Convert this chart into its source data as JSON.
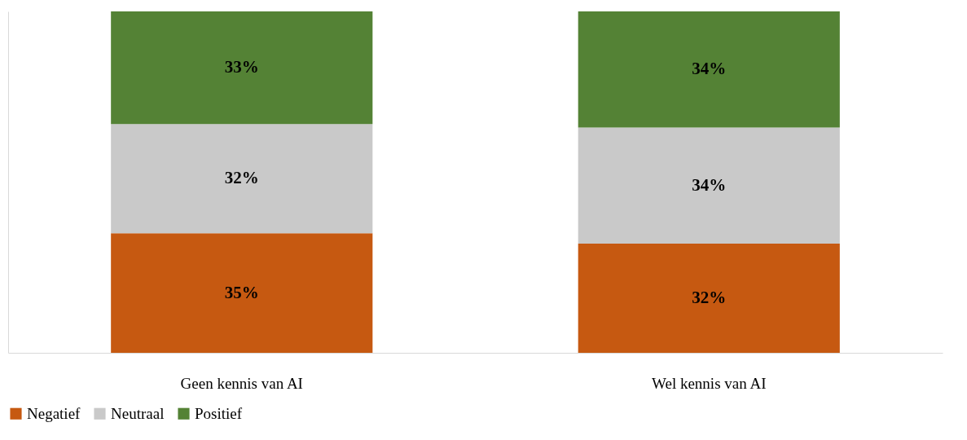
{
  "chart_data": {
    "type": "bar",
    "stacked": true,
    "categories": [
      "Geen kennis van AI",
      "Wel kennis van AI"
    ],
    "series": [
      {
        "name": "Negatief",
        "color": "#c65911",
        "values": [
          35,
          32
        ],
        "value_labels": [
          "35%",
          "32%"
        ]
      },
      {
        "name": "Neutraal",
        "color": "#c9c9c9",
        "values": [
          32,
          34
        ],
        "value_labels": [
          "32%",
          "34%"
        ]
      },
      {
        "name": "Positief",
        "color": "#548235",
        "values": [
          33,
          34
        ],
        "value_labels": [
          "33%",
          "34%"
        ]
      }
    ],
    "ylim": [
      0,
      100
    ],
    "tick_labels": "x",
    "legend": "bottom",
    "grid": false
  }
}
